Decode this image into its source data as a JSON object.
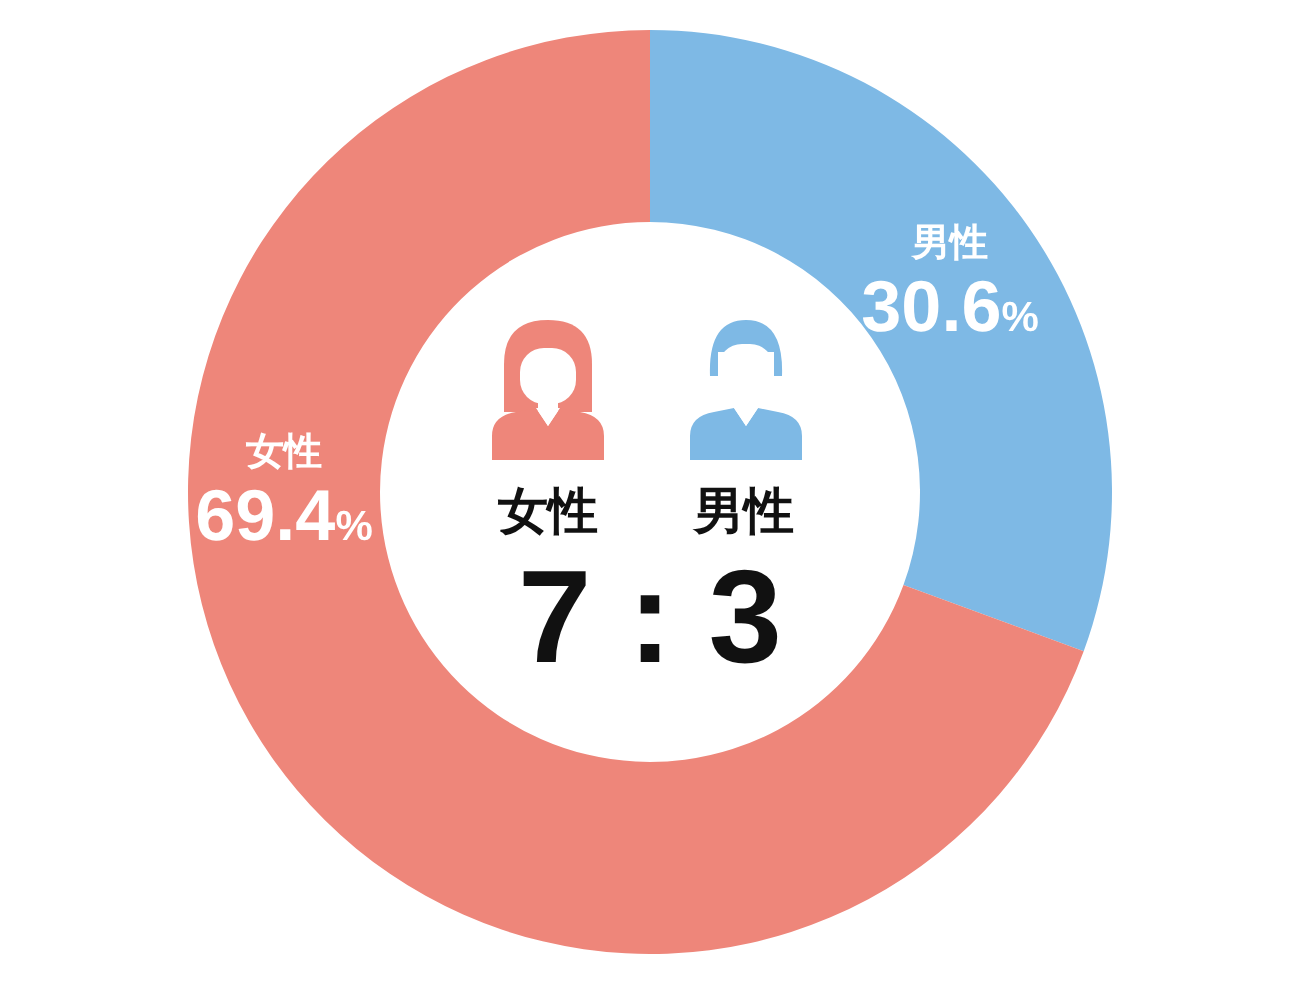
{
  "chart_data": {
    "type": "donut",
    "categories": [
      "男性",
      "女性"
    ],
    "values": [
      30.6,
      69.4
    ],
    "colors": [
      "#7eb9e5",
      "#ee867a"
    ],
    "value_labels": [
      "30.6%",
      "69.4%"
    ],
    "annotations": [
      "女性",
      "男性",
      "7 : 3"
    ]
  }
}
